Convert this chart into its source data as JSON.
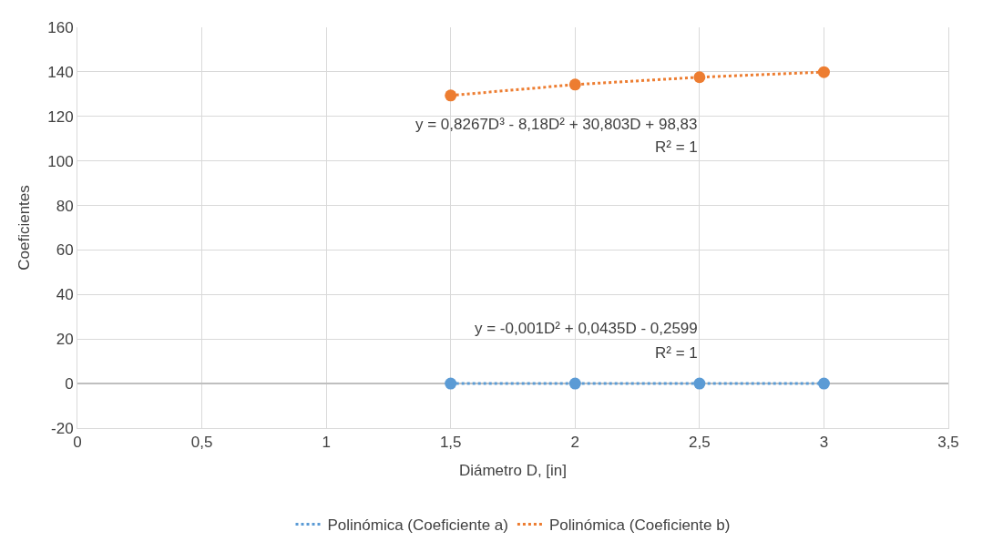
{
  "chart_data": {
    "type": "scatter",
    "xlabel": "Diámetro D, [in]",
    "ylabel": "Coeficientes",
    "x": [
      1.5,
      2,
      2.5,
      3
    ],
    "series": [
      {
        "color": "#5b9bd5",
        "values": [
          0,
          0,
          0,
          0
        ],
        "marker": "circle"
      },
      {
        "color": "#ed7d31",
        "values": [
          129.4,
          134.3,
          137.6,
          139.9
        ],
        "marker": "circle"
      },
      {
        "type": "line",
        "name": "Polinómica (Coeficiente a)",
        "color": "#5b9bd5",
        "x": [
          1.5,
          2,
          2.5,
          3
        ],
        "values": [
          0,
          0,
          0,
          0
        ],
        "line_style": "dotted",
        "marker": "none"
      },
      {
        "type": "line",
        "name": "Polinómica (Coeficiente b)",
        "color": "#ed7d31",
        "x": [
          1.5,
          2,
          2.5,
          3
        ],
        "values": [
          129.4,
          134.3,
          137.6,
          139.9
        ],
        "line_style": "dotted",
        "marker": "none"
      }
    ],
    "annotations": [
      "y = 0,8267D³ - 8,18D² + 30,803D + 98,83",
      "R² = 1",
      "y = -0,001D² + 0,0435D - 0,2599",
      "R² = 1"
    ],
    "xlim": [
      0,
      3.5
    ],
    "xticks": [
      0,
      {
        "value": 0.5,
        "label": "0,5"
      },
      1,
      {
        "value": 1.5,
        "label": "1,5"
      },
      2,
      {
        "value": 2.5,
        "label": "2,5"
      },
      3,
      {
        "value": 3.5,
        "label": "3,5"
      }
    ],
    "ylim": [
      -20,
      160
    ],
    "yticks": [
      -20,
      0,
      20,
      40,
      60,
      80,
      100,
      120,
      140,
      160
    ],
    "grid": true,
    "legend": "bottom"
  }
}
